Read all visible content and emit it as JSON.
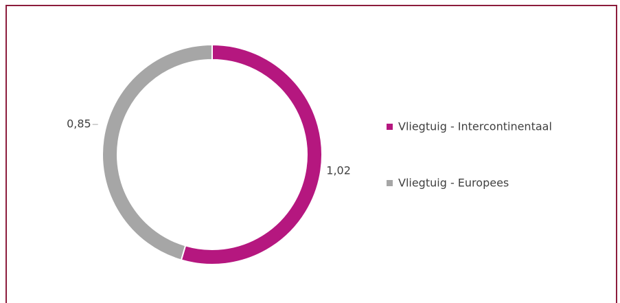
{
  "chart_data": {
    "type": "donut",
    "categories": [
      "Vliegtuig - Intercontinentaal",
      "Vliegtuig - Europees"
    ],
    "values": [
      1.02,
      0.85
    ],
    "value_labels": [
      "1,02",
      "0,85"
    ],
    "colors": [
      "#b5177f",
      "#a6a6a6"
    ],
    "legend": "right"
  }
}
